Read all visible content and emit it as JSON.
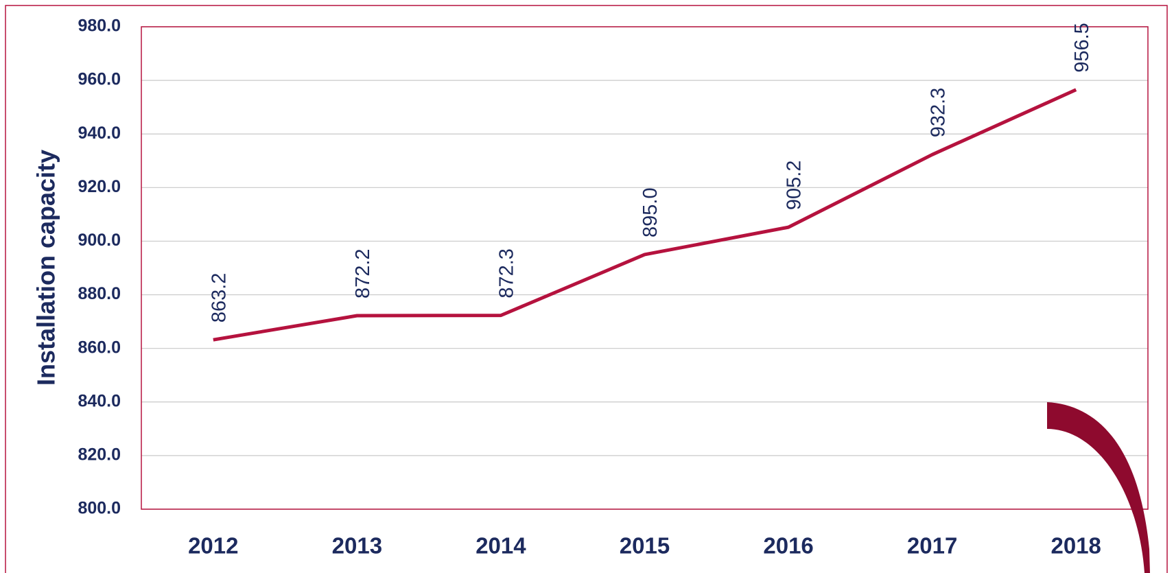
{
  "chart_data": {
    "type": "line",
    "y_label": "Installation capacity",
    "categories": [
      "2012",
      "2013",
      "2014",
      "2015",
      "2016",
      "2017",
      "2018"
    ],
    "values": [
      863.2,
      872.2,
      872.3,
      895.0,
      905.2,
      932.3,
      956.5
    ],
    "value_labels": [
      "863.2",
      "872.2",
      "872.3",
      "895.0",
      "905.2",
      "932.3",
      "956.5"
    ],
    "color": "#b5123e",
    "ylim": [
      800,
      980
    ],
    "yticks": [
      {
        "value": 800,
        "label": "800.0"
      },
      {
        "value": 820,
        "label": "820.0"
      },
      {
        "value": 840,
        "label": "840.0"
      },
      {
        "value": 860,
        "label": "860.0"
      },
      {
        "value": 880,
        "label": "880.0"
      },
      {
        "value": 900,
        "label": "900.0"
      },
      {
        "value": 920,
        "label": "920.0"
      },
      {
        "value": 940,
        "label": "940.0"
      },
      {
        "value": 960,
        "label": "960.0"
      },
      {
        "value": 980,
        "label": "980.0"
      }
    ],
    "grid": true
  }
}
